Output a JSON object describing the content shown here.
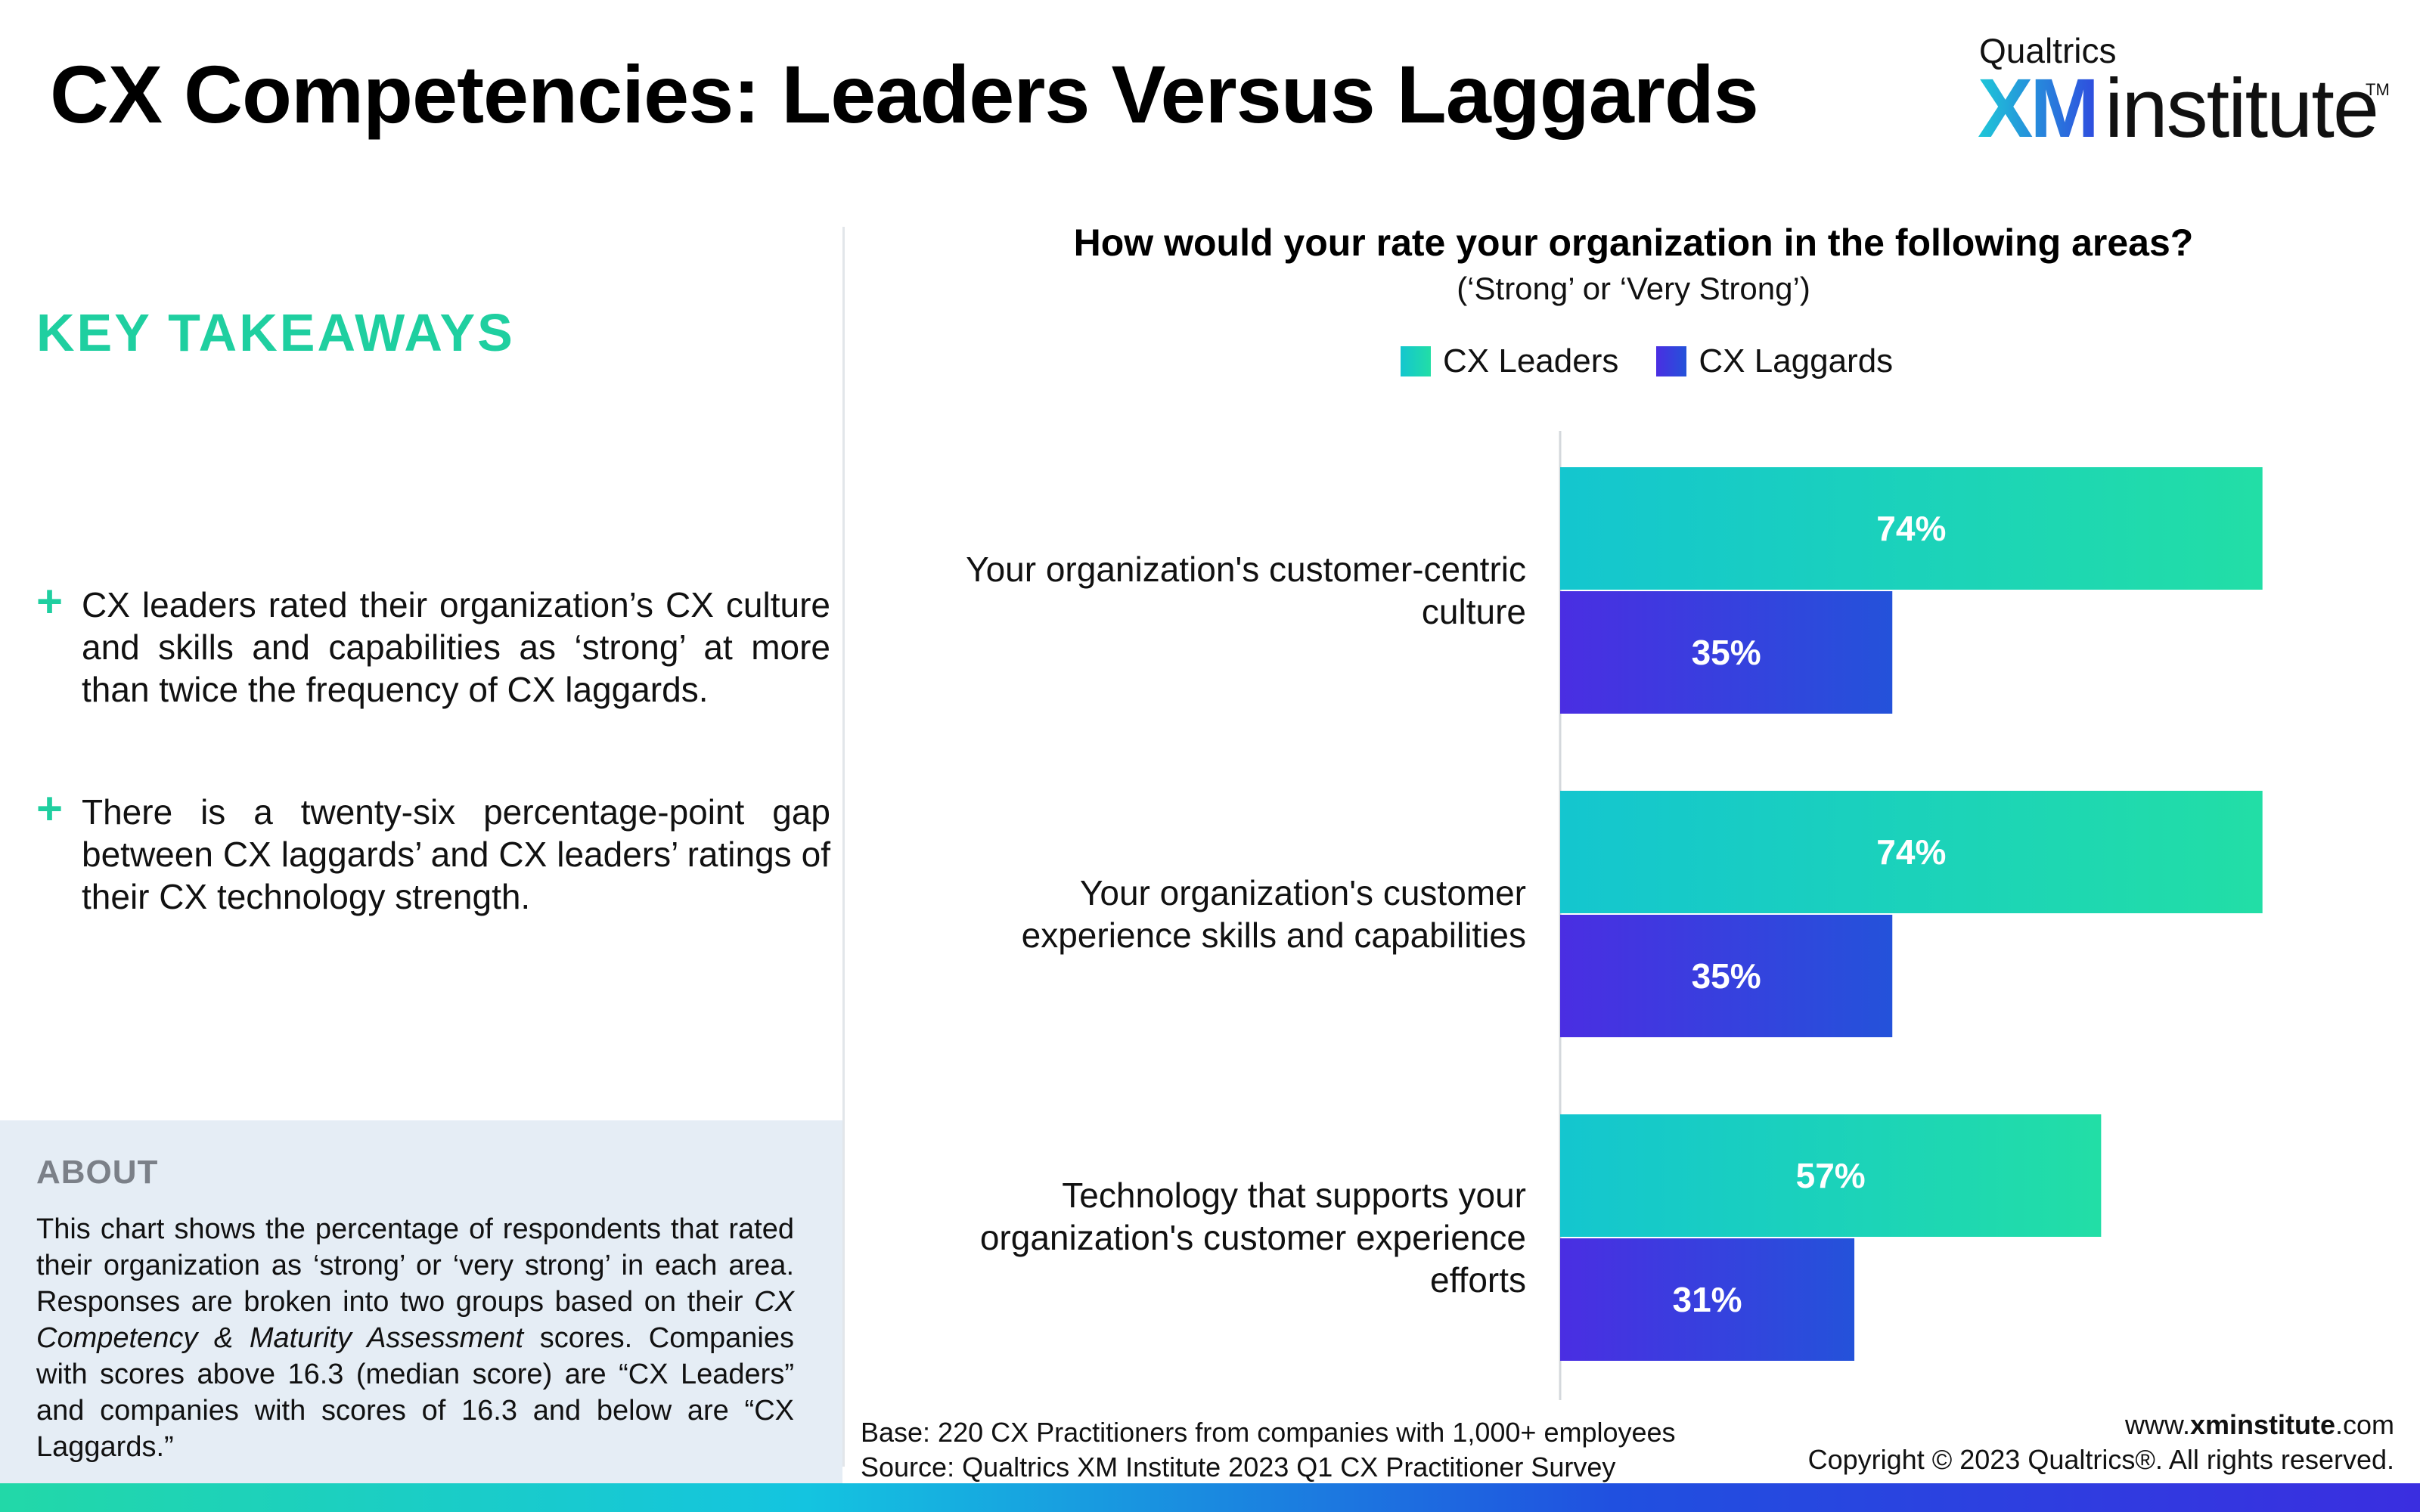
{
  "header": {
    "title": "CX Competencies: Leaders Versus Laggards",
    "logo": {
      "top": "Qualtrics",
      "xm": "XM",
      "institute": "institute",
      "tm": "TM"
    }
  },
  "takeaways": {
    "heading": "KEY TAKEAWAYS",
    "bullets": [
      "CX leaders rated their organization’s CX culture and skills and capabilities as ‘strong’ at more than twice the frequency of CX laggards.",
      "There is a twenty-six percentage-point gap between CX laggards’ and CX leaders’ ratings of their CX technology strength."
    ]
  },
  "about": {
    "heading": "ABOUT",
    "text_before": "This chart shows the percentage of respondents that rated their organization as ‘strong’ or ‘very strong’ in each area. Responses are broken into two groups based on their ",
    "text_italic": "CX Competency & Maturity Assessment",
    "text_after": " scores. Companies with scores above 16.3 (median score) are “CX Leaders” and companies with scores of 16.3 and below  are “CX Laggards.”"
  },
  "chart_data": {
    "type": "bar",
    "orientation": "horizontal",
    "title": "How would your rate your organization in the following areas?",
    "subtitle": "(‘Strong’ or ‘Very Strong’)",
    "categories": [
      [
        "Your organization's customer-centric",
        "culture"
      ],
      [
        "Your organization's customer",
        "experience skills and capabilities"
      ],
      [
        "Technology that supports your",
        "organization's customer experience",
        "efforts"
      ]
    ],
    "series": [
      {
        "name": "CX Leaders",
        "values": [
          74,
          74,
          57
        ],
        "color_start": "#14c6cf",
        "color_end": "#22dea6"
      },
      {
        "name": "CX Laggards",
        "values": [
          35,
          35,
          31
        ],
        "color_start": "#4a2ee2",
        "color_end": "#2452da"
      }
    ],
    "value_suffix": "%",
    "xlim": [
      0,
      100
    ],
    "grid": false,
    "legend_position": "top"
  },
  "footer": {
    "base": "Base: 220 CX Practitioners from companies with 1,000+ employees",
    "source": "Source: Qualtrics XM Institute 2023 Q1 CX Practitioner Survey",
    "url_prefix": "www.",
    "url_bold": "xminstitute",
    "url_suffix": ".com",
    "copyright": "Copyright © 2023 Qualtrics®. All rights reserved."
  }
}
